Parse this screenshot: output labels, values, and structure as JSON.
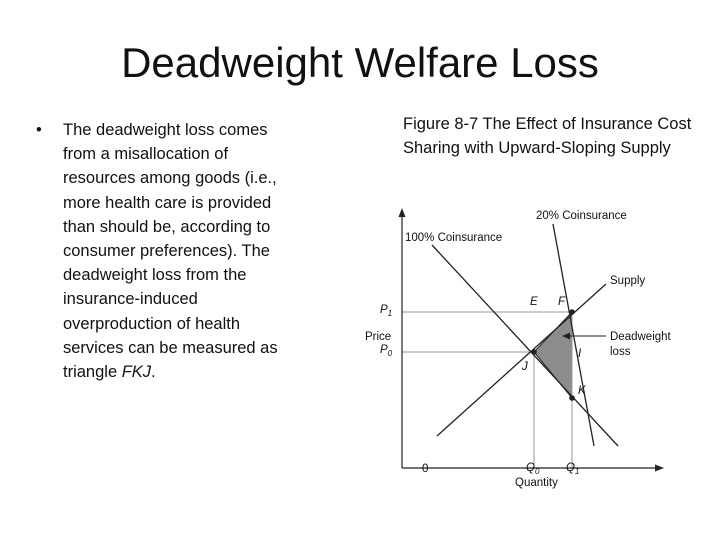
{
  "slide": {
    "title": "Deadweight Welfare Loss"
  },
  "bullet": {
    "marker": "•",
    "text_before": "The deadweight loss comes from a misallocation of resources among goods (i.e., more health care is provided than should be, according to consumer preferences). The deadweight loss from the insurance-induced overproduction of health services can be measured as triangle ",
    "emph": "FKJ",
    "text_after": "."
  },
  "figure": {
    "caption": "Figure 8-7 The Effect of Insurance Cost Sharing with Upward-Sloping Supply",
    "curve_labels": {
      "coinsurance_20": "20% Coinsurance",
      "coinsurance_100": "100% Coinsurance",
      "supply": "Supply",
      "deadweight_line1": "Deadweight",
      "deadweight_line2": "loss"
    },
    "axes": {
      "y_label": "Price",
      "x_label": "Quantity",
      "origin": "0",
      "p1_base": "P",
      "p1_sub": "1",
      "p0_base": "P",
      "p0_sub": "0",
      "q0_base": "Q",
      "q0_sub": "0",
      "q1_base": "Q",
      "q1_sub": "1"
    },
    "points": {
      "E": "E",
      "F": "F",
      "I": "I",
      "J": "J",
      "K": "K"
    },
    "colors": {
      "line": "#222222",
      "gridline": "#9a9a9a",
      "triangle_fill": "#8c8c8c"
    }
  }
}
